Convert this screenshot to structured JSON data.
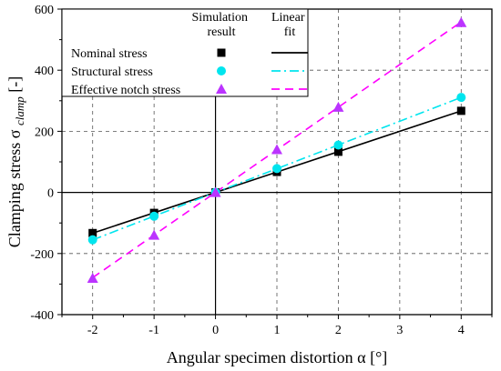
{
  "chart_data": {
    "type": "scatter",
    "xlabel": "Angular specimen distortion α [°]",
    "ylabel": "Clamping stress σ",
    "ylabel_subscript": "clamp",
    "ylabel_unit": " [-]",
    "xlim": [
      -2.5,
      4.5
    ],
    "ylim": [
      -400,
      600
    ],
    "x_ticks": [
      -2,
      -1,
      0,
      1,
      2,
      3,
      4
    ],
    "y_ticks": [
      -400,
      -200,
      0,
      200,
      400,
      600
    ],
    "grid": true,
    "legend": {
      "header_markers": "Simulation result",
      "header_lines": "Linear fit",
      "placement": "top-left"
    },
    "series": [
      {
        "name": "Nominal stress",
        "color": "#000000",
        "marker": "square",
        "line_style": "solid",
        "x": [
          -2,
          -1,
          0,
          1,
          2,
          4
        ],
        "y": [
          -133,
          -67,
          0,
          67,
          133,
          267
        ],
        "fit": {
          "slope": 66.7,
          "intercept": 0
        }
      },
      {
        "name": "Structural stress",
        "color": "#00e5ee",
        "marker": "circle",
        "line_style": "dash-dot",
        "x": [
          -2,
          -1,
          0,
          1,
          2,
          4
        ],
        "y": [
          -155,
          -78,
          0,
          78,
          155,
          311
        ],
        "fit": {
          "slope": 77.7,
          "intercept": 0
        }
      },
      {
        "name": "Effective notch stress",
        "color": "#ff00ff",
        "marker_color": "#bb33ff",
        "marker": "triangle",
        "line_style": "dashed",
        "x": [
          -2,
          -1,
          0,
          1,
          2,
          4
        ],
        "y": [
          -281,
          -140,
          0,
          140,
          279,
          556
        ],
        "fit": {
          "slope": 139.5,
          "intercept": 0
        }
      }
    ]
  }
}
